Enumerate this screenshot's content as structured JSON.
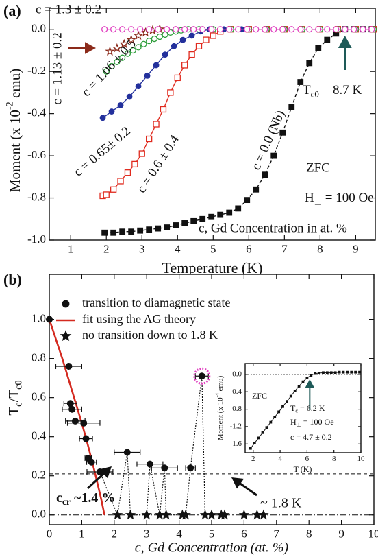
{
  "chart_data": [
    {
      "type": "line",
      "panel_label": "(a)",
      "xlabel": "Temperature (K)",
      "ylabel": [
        "Moment (x 10",
        "-2",
        " emu)"
      ],
      "xlim": [
        0.4,
        9.55
      ],
      "ylim": [
        -1.0,
        0.1
      ],
      "xticks": [
        1,
        2,
        3,
        4,
        5,
        6,
        7,
        8,
        9
      ],
      "yticks": [
        {
          "value": 0,
          "label": "0.0"
        },
        -0.2,
        -0.4,
        -0.6,
        -0.8,
        {
          "value": -1,
          "label": "-1.0"
        }
      ],
      "arrow_at": 8.7,
      "annotations": {
        "tc0": [
          "T",
          "c0",
          " = 8.7 K"
        ],
        "zfc": "ZFC",
        "field": [
          "H",
          "⊥",
          " = 100 Oe"
        ],
        "note": "c, Gd Concentration in at. %"
      },
      "series": [
        {
          "name": "c = 0.0 (Nb)",
          "color": "#111111",
          "marker": "square",
          "line_style": "dashed",
          "x": [
            1.95,
            2.2,
            2.45,
            2.7,
            2.95,
            3.2,
            3.45,
            3.7,
            3.95,
            4.2,
            4.45,
            4.7,
            4.95,
            5.2,
            5.45,
            5.7,
            5.95,
            6.2,
            6.45,
            6.7,
            6.95,
            7.2,
            7.45,
            7.7,
            7.95,
            8.2,
            8.45,
            8.7,
            8.95,
            9.2,
            9.45
          ],
          "values": [
            -0.965,
            -0.965,
            -0.96,
            -0.96,
            -0.955,
            -0.95,
            -0.945,
            -0.94,
            -0.93,
            -0.92,
            -0.91,
            -0.9,
            -0.89,
            -0.88,
            -0.87,
            -0.85,
            -0.81,
            -0.76,
            -0.69,
            -0.6,
            -0.49,
            -0.37,
            -0.25,
            -0.16,
            -0.09,
            -0.05,
            -0.02,
            0,
            0,
            0,
            0
          ]
        },
        {
          "name": "c = 0.6 ± 0.4",
          "color": "#e02a1e",
          "marker": "square-open",
          "line_style": "solid",
          "x": [
            1.9,
            2.0,
            2.2,
            2.4,
            2.6,
            2.8,
            3.0,
            3.2,
            3.4,
            3.6,
            3.8,
            4.0,
            4.2,
            4.4,
            4.6,
            4.8,
            5.0,
            5.2,
            5.5,
            6.0,
            6.5,
            7.0,
            7.5,
            8.0,
            8.5,
            9.0,
            9.5
          ],
          "values": [
            -0.79,
            -0.785,
            -0.76,
            -0.72,
            -0.68,
            -0.64,
            -0.59,
            -0.52,
            -0.45,
            -0.38,
            -0.3,
            -0.23,
            -0.17,
            -0.12,
            -0.08,
            -0.05,
            -0.03,
            -0.01,
            0,
            0,
            0,
            0,
            0,
            0,
            0,
            0,
            0
          ]
        },
        {
          "name": "c = 0.65± 0.2",
          "color": "#23309c",
          "marker": "circle",
          "line_style": "solid",
          "x": [
            1.9,
            2.15,
            2.4,
            2.65,
            2.9,
            3.15,
            3.4,
            3.65,
            3.9,
            4.15,
            4.4,
            4.65,
            4.9,
            5.3,
            5.8
          ],
          "values": [
            -0.42,
            -0.39,
            -0.36,
            -0.32,
            -0.27,
            -0.22,
            -0.17,
            -0.12,
            -0.08,
            -0.05,
            -0.03,
            -0.01,
            0,
            0,
            0
          ]
        },
        {
          "name": "c = 1.06 ± 0.5",
          "color": "#2f9e3c",
          "marker": "circle-open",
          "line_style": "solid",
          "x": [
            2.0,
            2.15,
            2.3,
            2.45,
            2.6,
            2.75,
            2.9,
            3.05,
            3.2,
            3.35,
            3.5,
            3.65,
            3.8,
            3.95,
            4.1,
            4.3,
            4.6,
            5.0,
            5.5,
            6.0,
            6.5,
            7.0,
            7.5,
            8.0,
            8.5,
            9.0,
            9.5
          ],
          "values": [
            -0.2,
            -0.175,
            -0.155,
            -0.135,
            -0.115,
            -0.1,
            -0.085,
            -0.07,
            -0.055,
            -0.045,
            -0.035,
            -0.025,
            -0.015,
            -0.01,
            -0.005,
            0,
            0,
            0,
            0,
            0,
            0,
            0,
            0,
            0,
            0,
            0,
            0
          ]
        },
        {
          "name": "c = 1.13 ± 0.2",
          "color": "#8b2a1a",
          "marker": "star-open",
          "line_style": "none",
          "x": [
            2.1,
            2.3,
            2.5,
            2.7,
            2.9,
            3.1,
            3.3,
            3.5
          ],
          "values": [
            -0.105,
            -0.09,
            -0.07,
            -0.05,
            -0.03,
            -0.015,
            -0.005,
            0
          ]
        },
        {
          "name": "c = 1.3 ± 0.2",
          "color": "#e040c0",
          "marker": "circle-open",
          "line_style": "solid",
          "x": [
            1.95,
            2.2,
            2.45,
            2.7,
            2.95,
            3.2,
            3.45,
            3.7,
            3.95,
            4.2,
            4.45,
            4.7,
            4.95,
            5.2,
            5.45,
            5.7,
            5.95,
            6.2,
            6.45,
            6.7,
            6.95,
            7.2,
            7.45,
            7.7,
            7.95,
            8.2,
            8.45,
            8.7,
            8.95,
            9.2,
            9.45
          ],
          "values": [
            0,
            0,
            0,
            0,
            0,
            0,
            0,
            0,
            0,
            0,
            0,
            0,
            0,
            0,
            0,
            0,
            0,
            0,
            0,
            0,
            0,
            0,
            0,
            0,
            0,
            0,
            0,
            0,
            0,
            0,
            0
          ]
        }
      ]
    },
    {
      "type": "scatter",
      "panel_label": "(b)",
      "xlabel": "c, Gd Concentration (at. %)",
      "ylabel": [
        "T",
        "c",
        "/T",
        "c0"
      ],
      "xlim": [
        0,
        10
      ],
      "ylim": [
        -0.05,
        1.23
      ],
      "xticks": [
        0,
        1,
        2,
        3,
        4,
        5,
        6,
        7,
        8,
        9,
        10
      ],
      "yticks": [
        {
          "value": 0,
          "label": "0.0"
        },
        0.2,
        0.4,
        0.6,
        0.8,
        {
          "value": 1,
          "label": "1.0"
        }
      ],
      "reference_lines": [
        {
          "value": 0.21,
          "style": "dashed"
        },
        {
          "value": 0,
          "style": "dashdot"
        }
      ],
      "highlight": {
        "series": 0,
        "index": 14,
        "color": "#e040c0"
      },
      "annotations": {
        "c_cr": [
          "c",
          "cr",
          " ~1.4 %"
        ],
        "temp": "~ 1.8 K"
      },
      "series": [
        {
          "name": "transition to diamagnetic state",
          "color": "#111111",
          "marker": "circle",
          "x": [
            0,
            0.6,
            0.65,
            0.7,
            0.8,
            1.06,
            1.13,
            1.2,
            1.3,
            1.56,
            2.4,
            3.1,
            3.55,
            4.35,
            4.7
          ],
          "values": [
            1.0,
            0.76,
            0.57,
            0.54,
            0.48,
            0.47,
            0.39,
            0.29,
            0.27,
            0.22,
            0.32,
            0.26,
            0.24,
            0.24,
            0.71
          ],
          "xerr": [
            0,
            0.4,
            0.2,
            0.3,
            0.3,
            0.5,
            0.2,
            0.1,
            0.15,
            0.4,
            0.4,
            0.4,
            0.4,
            0.15,
            0.2
          ]
        },
        {
          "name": "fit using the AG theory",
          "color": "#d42a20",
          "marker": "none",
          "x": [
            0,
            0.2,
            0.4,
            0.6,
            0.8,
            1.0,
            1.2,
            1.4,
            1.6,
            1.7
          ],
          "values": [
            1.0,
            0.9,
            0.8,
            0.69,
            0.58,
            0.47,
            0.35,
            0.22,
            0.08,
            0
          ]
        },
        {
          "name": "no transition down to 1.8 K",
          "color": "#111111",
          "marker": "star",
          "x": [
            2.1,
            2.5,
            3.0,
            3.4,
            3.6,
            4.1,
            4.2,
            4.8,
            5.0,
            5.3,
            5.4,
            6.0,
            6.4,
            6.6
          ],
          "values": [
            0,
            0,
            0,
            0,
            0,
            0,
            0,
            0,
            0,
            0,
            0,
            0,
            0,
            0
          ]
        }
      ]
    },
    {
      "type": "line",
      "xlabel": "T (K)",
      "ylabel": [
        "Moment (x 10",
        "-4",
        " emu)"
      ],
      "xlim": [
        1.4,
        10
      ],
      "ylim": [
        -1.8,
        0.25
      ],
      "xticks": [
        2,
        4,
        6,
        8,
        10
      ],
      "yticks": [
        {
          "value": 0,
          "label": "0.0"
        },
        -0.4,
        -0.8,
        -1.2,
        -1.6
      ],
      "arrow_at": 6.2,
      "annotations": {
        "zfc": "ZFC",
        "tc": [
          "T",
          "c",
          " = 6.2 K"
        ],
        "field": [
          "H",
          "⊥",
          " = 100 Oe"
        ],
        "conc": "c = 4.7 ± 0.2"
      },
      "series": [
        {
          "color": "#111111",
          "marker": "square",
          "line_style": "solid",
          "x": [
            1.8,
            2.1,
            2.4,
            2.7,
            3.0,
            3.3,
            3.6,
            3.9,
            4.2,
            4.5,
            4.8,
            5.1,
            5.4,
            5.7,
            6.0,
            6.3,
            6.6,
            6.9,
            7.2,
            7.5,
            7.8,
            8.1,
            8.4,
            8.7,
            9.0,
            9.3,
            9.6,
            9.9
          ],
          "values": [
            -1.7,
            -1.58,
            -1.46,
            -1.34,
            -1.22,
            -1.1,
            -0.98,
            -0.86,
            -0.74,
            -0.62,
            -0.5,
            -0.38,
            -0.27,
            -0.17,
            -0.08,
            -0.02,
            0.02,
            0.03,
            0.04,
            0.04,
            0.04,
            0.04,
            0.05,
            0.05,
            0.05,
            0.05,
            0.05,
            0.05
          ]
        }
      ]
    }
  ]
}
